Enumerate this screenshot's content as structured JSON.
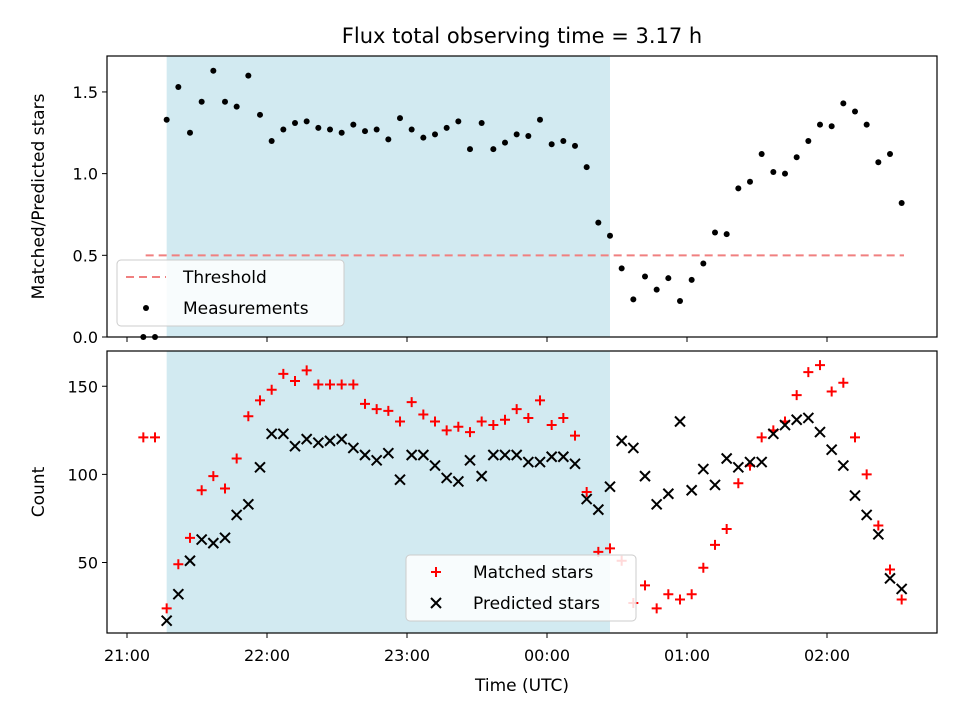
{
  "figure": {
    "title": "Flux total observing time = 3.17 h"
  },
  "chart_data": [
    {
      "type": "scatter",
      "ylabel": "Matched/Predicted stars",
      "ylim": [
        0,
        1.72
      ],
      "yticks": [
        0.0,
        0.5,
        1.0,
        1.5
      ],
      "ytick_labels": [
        "0.0",
        "0.5",
        "1.0",
        "1.5"
      ],
      "observing_window": {
        "start": "21:17",
        "end": "00:27",
        "color": "#add8e6"
      },
      "series": [
        {
          "name": "Threshold",
          "kind": "line",
          "color": "#f08080",
          "points": [
            [
              "21:08",
              0.5
            ],
            [
              "02:33",
              0.5
            ]
          ]
        },
        {
          "name": "Measurements",
          "kind": "dots",
          "color": "#000000",
          "points": [
            [
              "21:07",
              0.0
            ],
            [
              "21:12",
              0.0
            ],
            [
              "21:17",
              1.33
            ],
            [
              "21:22",
              1.53
            ],
            [
              "21:27",
              1.25
            ],
            [
              "21:32",
              1.44
            ],
            [
              "21:37",
              1.63
            ],
            [
              "21:42",
              1.44
            ],
            [
              "21:47",
              1.41
            ],
            [
              "21:52",
              1.6
            ],
            [
              "21:57",
              1.36
            ],
            [
              "22:02",
              1.2
            ],
            [
              "22:07",
              1.27
            ],
            [
              "22:12",
              1.31
            ],
            [
              "22:17",
              1.32
            ],
            [
              "22:22",
              1.28
            ],
            [
              "22:27",
              1.27
            ],
            [
              "22:32",
              1.25
            ],
            [
              "22:37",
              1.3
            ],
            [
              "22:42",
              1.26
            ],
            [
              "22:47",
              1.27
            ],
            [
              "22:52",
              1.21
            ],
            [
              "22:57",
              1.34
            ],
            [
              "23:02",
              1.27
            ],
            [
              "23:07",
              1.22
            ],
            [
              "23:12",
              1.24
            ],
            [
              "23:17",
              1.28
            ],
            [
              "23:22",
              1.32
            ],
            [
              "23:27",
              1.15
            ],
            [
              "23:32",
              1.31
            ],
            [
              "23:37",
              1.15
            ],
            [
              "23:42",
              1.19
            ],
            [
              "23:47",
              1.24
            ],
            [
              "23:52",
              1.23
            ],
            [
              "23:57",
              1.33
            ],
            [
              "00:02",
              1.18
            ],
            [
              "00:07",
              1.2
            ],
            [
              "00:12",
              1.17
            ],
            [
              "00:17",
              1.04
            ],
            [
              "00:22",
              0.7
            ],
            [
              "00:27",
              0.62
            ],
            [
              "00:32",
              0.42
            ],
            [
              "00:37",
              0.23
            ],
            [
              "00:42",
              0.37
            ],
            [
              "00:47",
              0.29
            ],
            [
              "00:52",
              0.36
            ],
            [
              "00:57",
              0.22
            ],
            [
              "01:02",
              0.35
            ],
            [
              "01:07",
              0.45
            ],
            [
              "01:12",
              0.64
            ],
            [
              "01:17",
              0.63
            ],
            [
              "01:22",
              0.91
            ],
            [
              "01:27",
              0.95
            ],
            [
              "01:32",
              1.12
            ],
            [
              "01:37",
              1.01
            ],
            [
              "01:42",
              1.0
            ],
            [
              "01:47",
              1.1
            ],
            [
              "01:52",
              1.2
            ],
            [
              "01:57",
              1.3
            ],
            [
              "02:02",
              1.29
            ],
            [
              "02:07",
              1.43
            ],
            [
              "02:12",
              1.38
            ],
            [
              "02:17",
              1.3
            ],
            [
              "02:22",
              1.07
            ],
            [
              "02:27",
              1.12
            ],
            [
              "02:32",
              0.82
            ]
          ]
        }
      ],
      "legend": {
        "position": "lower-left"
      }
    },
    {
      "type": "scatter",
      "xlabel": "Time (UTC)",
      "ylabel": "Count",
      "ylim": [
        10,
        170
      ],
      "yticks": [
        50,
        100,
        150
      ],
      "ytick_labels": [
        "50",
        "100",
        "150"
      ],
      "xlim": [
        "20:58",
        "02:57"
      ],
      "xticks": [
        "21:00",
        "22:00",
        "23:00",
        "00:00",
        "01:00",
        "02:00"
      ],
      "observing_window": {
        "start": "21:17",
        "end": "00:27",
        "color": "#add8e6"
      },
      "series": [
        {
          "name": "Matched stars",
          "marker": "+",
          "color": "#ff0000",
          "points": [
            [
              "21:07",
              121
            ],
            [
              "21:12",
              121
            ],
            [
              "21:17",
              24
            ],
            [
              "21:22",
              49
            ],
            [
              "21:27",
              64
            ],
            [
              "21:32",
              91
            ],
            [
              "21:37",
              99
            ],
            [
              "21:42",
              92
            ],
            [
              "21:47",
              109
            ],
            [
              "21:52",
              133
            ],
            [
              "21:57",
              142
            ],
            [
              "22:02",
              148
            ],
            [
              "22:07",
              157
            ],
            [
              "22:12",
              153
            ],
            [
              "22:17",
              159
            ],
            [
              "22:22",
              151
            ],
            [
              "22:27",
              151
            ],
            [
              "22:32",
              151
            ],
            [
              "22:37",
              151
            ],
            [
              "22:42",
              140
            ],
            [
              "22:47",
              137
            ],
            [
              "22:52",
              136
            ],
            [
              "22:57",
              130
            ],
            [
              "23:02",
              141
            ],
            [
              "23:07",
              134
            ],
            [
              "23:12",
              130
            ],
            [
              "23:17",
              125
            ],
            [
              "23:22",
              127
            ],
            [
              "23:27",
              124
            ],
            [
              "23:32",
              130
            ],
            [
              "23:37",
              128
            ],
            [
              "23:42",
              131
            ],
            [
              "23:47",
              137
            ],
            [
              "23:52",
              132
            ],
            [
              "23:57",
              142
            ],
            [
              "00:02",
              128
            ],
            [
              "00:07",
              132
            ],
            [
              "00:12",
              122
            ],
            [
              "00:17",
              90
            ],
            [
              "00:22",
              56
            ],
            [
              "00:27",
              58
            ],
            [
              "00:32",
              51
            ],
            [
              "00:37",
              27
            ],
            [
              "00:42",
              37
            ],
            [
              "00:47",
              24
            ],
            [
              "00:52",
              32
            ],
            [
              "00:57",
              29
            ],
            [
              "01:02",
              32
            ],
            [
              "01:07",
              47
            ],
            [
              "01:12",
              60
            ],
            [
              "01:17",
              69
            ],
            [
              "01:22",
              95
            ],
            [
              "01:27",
              105
            ],
            [
              "01:32",
              121
            ],
            [
              "01:37",
              125
            ],
            [
              "01:42",
              130
            ],
            [
              "01:47",
              145
            ],
            [
              "01:52",
              158
            ],
            [
              "01:57",
              162
            ],
            [
              "02:02",
              147
            ],
            [
              "02:07",
              152
            ],
            [
              "02:12",
              121
            ],
            [
              "02:17",
              100
            ],
            [
              "02:22",
              71
            ],
            [
              "02:27",
              46
            ],
            [
              "02:32",
              29
            ]
          ]
        },
        {
          "name": "Predicted stars",
          "marker": "x",
          "color": "#000000",
          "points": [
            [
              "21:17",
              17
            ],
            [
              "21:22",
              32
            ],
            [
              "21:27",
              51
            ],
            [
              "21:32",
              63
            ],
            [
              "21:37",
              61
            ],
            [
              "21:42",
              64
            ],
            [
              "21:47",
              77
            ],
            [
              "21:52",
              83
            ],
            [
              "21:57",
              104
            ],
            [
              "22:02",
              123
            ],
            [
              "22:07",
              123
            ],
            [
              "22:12",
              116
            ],
            [
              "22:17",
              120
            ],
            [
              "22:22",
              118
            ],
            [
              "22:27",
              119
            ],
            [
              "22:32",
              120
            ],
            [
              "22:37",
              115
            ],
            [
              "22:42",
              111
            ],
            [
              "22:47",
              108
            ],
            [
              "22:52",
              112
            ],
            [
              "22:57",
              97
            ],
            [
              "23:02",
              111
            ],
            [
              "23:07",
              111
            ],
            [
              "23:12",
              105
            ],
            [
              "23:17",
              98
            ],
            [
              "23:22",
              96
            ],
            [
              "23:27",
              108
            ],
            [
              "23:32",
              99
            ],
            [
              "23:37",
              111
            ],
            [
              "23:42",
              111
            ],
            [
              "23:47",
              111
            ],
            [
              "23:52",
              107
            ],
            [
              "23:57",
              107
            ],
            [
              "00:02",
              110
            ],
            [
              "00:07",
              110
            ],
            [
              "00:12",
              106
            ],
            [
              "00:17",
              86
            ],
            [
              "00:22",
              80
            ],
            [
              "00:27",
              93
            ],
            [
              "00:32",
              119
            ],
            [
              "00:37",
              115
            ],
            [
              "00:42",
              99
            ],
            [
              "00:47",
              83
            ],
            [
              "00:52",
              89
            ],
            [
              "00:57",
              130
            ],
            [
              "01:02",
              91
            ],
            [
              "01:07",
              103
            ],
            [
              "01:12",
              94
            ],
            [
              "01:17",
              109
            ],
            [
              "01:22",
              104
            ],
            [
              "01:27",
              107
            ],
            [
              "01:32",
              107
            ],
            [
              "01:37",
              123
            ],
            [
              "01:42",
              128
            ],
            [
              "01:47",
              131
            ],
            [
              "01:52",
              132
            ],
            [
              "01:57",
              124
            ],
            [
              "02:02",
              114
            ],
            [
              "02:07",
              105
            ],
            [
              "02:12",
              88
            ],
            [
              "02:17",
              77
            ],
            [
              "02:22",
              66
            ],
            [
              "02:27",
              41
            ],
            [
              "02:32",
              35
            ]
          ]
        }
      ],
      "legend": {
        "position": "lower-center"
      }
    }
  ]
}
